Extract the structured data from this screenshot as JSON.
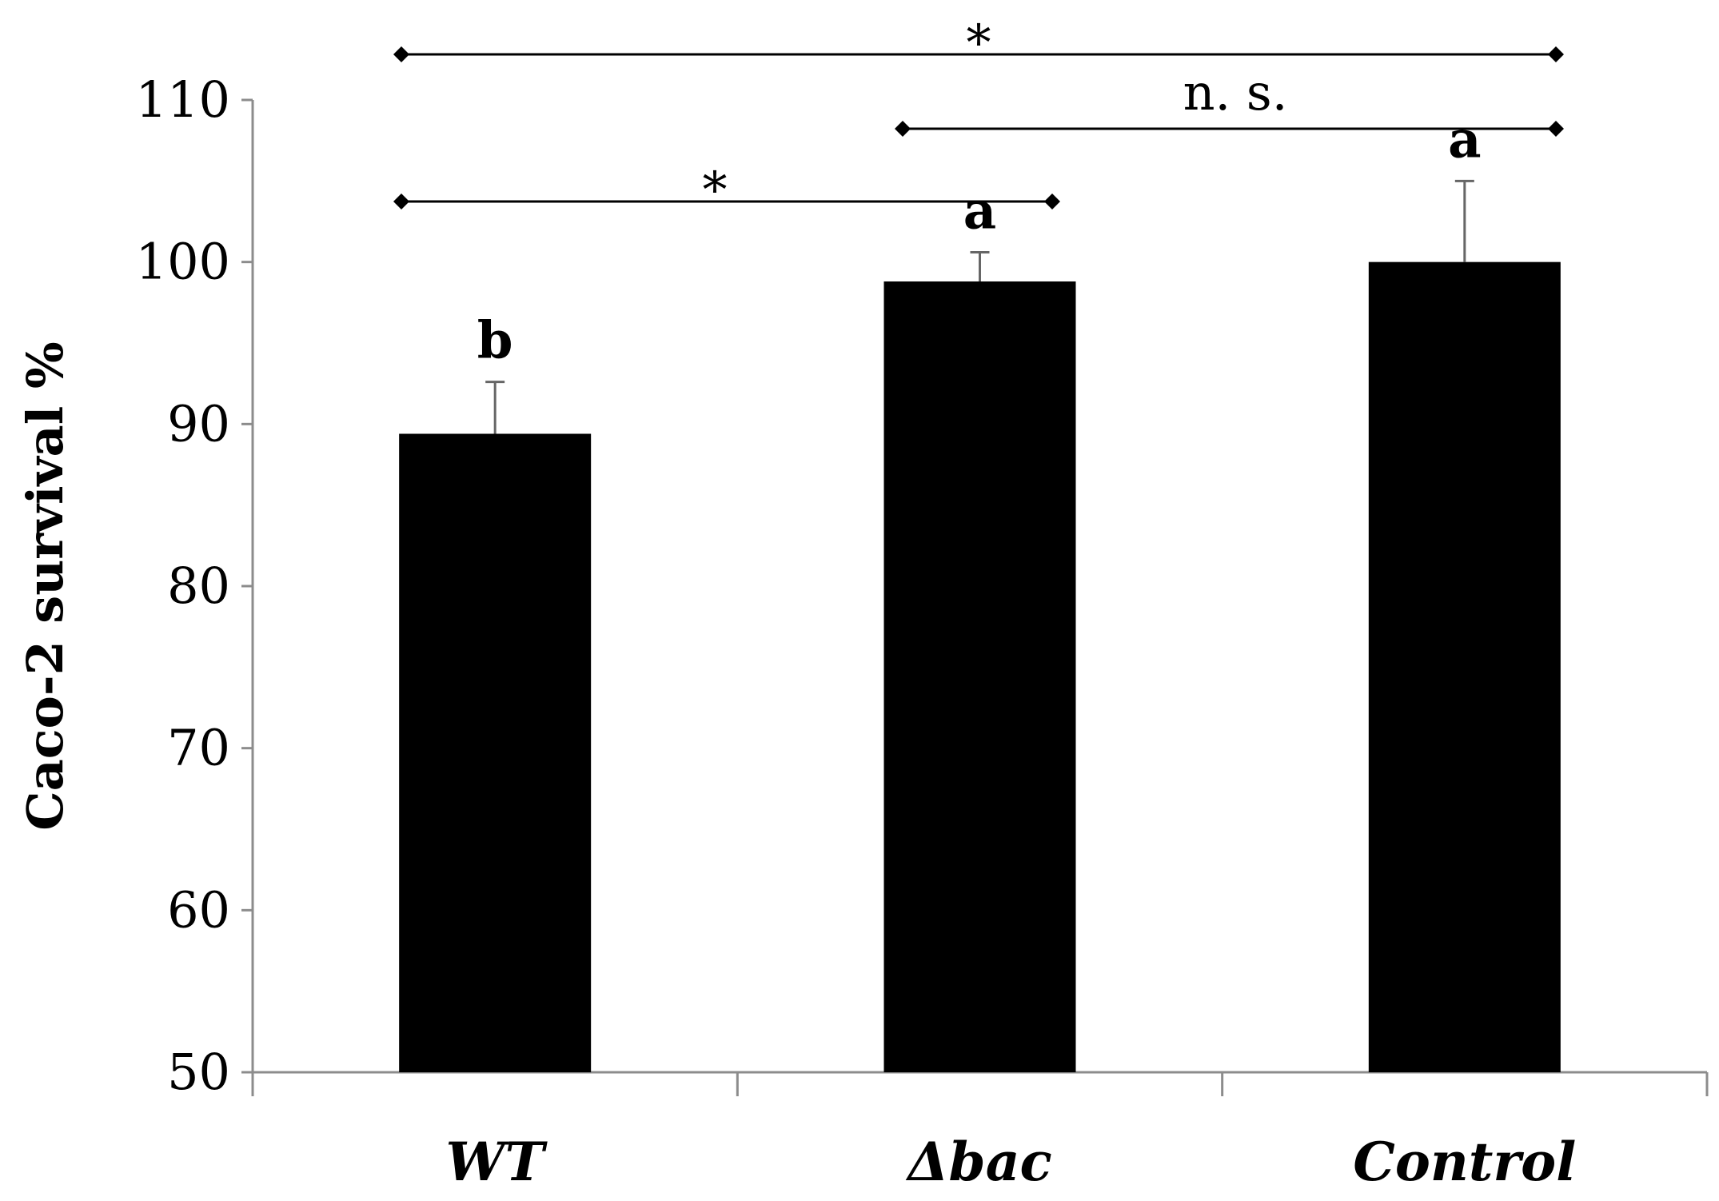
{
  "chart_data": {
    "type": "bar",
    "categories": [
      "WT",
      "Δbac",
      "Control"
    ],
    "values": [
      89.4,
      98.8,
      100.0
    ],
    "errors": [
      3.2,
      1.8,
      5.0
    ],
    "group_letters": [
      "b",
      "a",
      "a"
    ],
    "title": "",
    "xlabel": "",
    "ylabel": "Caco-2 survival %",
    "ylim": [
      50,
      110
    ],
    "yticks": [
      50,
      60,
      70,
      80,
      90,
      100,
      110
    ],
    "grid": false,
    "legend": "none",
    "bar_color": "#000000",
    "error_bar_color": "#666666",
    "comparisons": [
      {
        "from": 0,
        "to": 2,
        "label": "*"
      },
      {
        "from": 1,
        "to": 2,
        "label": "n. s."
      },
      {
        "from": 0,
        "to": 1,
        "label": "*"
      }
    ]
  }
}
